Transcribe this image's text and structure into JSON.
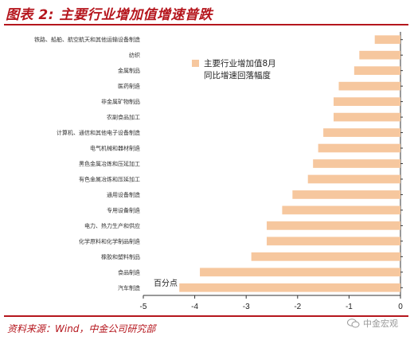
{
  "header": {
    "title": "图表 2: 主要行业增加值增速普跌"
  },
  "footer": {
    "source": "资料来源：Wind，中金公司研究部",
    "watermark": "中金宏观"
  },
  "chart_data": {
    "type": "bar",
    "orientation": "horizontal",
    "categories": [
      "铁路、船舶、航空航天和其他运输设备制造",
      "纺织",
      "金属制品",
      "医药制造",
      "非金属矿物制品",
      "农副食品加工",
      "计算机、通信和其他电子设备制造",
      "电气机械和器材制造",
      "黑色金属冶炼和压延加工",
      "有色金属冶炼和压延加工",
      "通用设备制造",
      "专用设备制造",
      "电力、热力生产和供应",
      "化学原料和化学制品制造",
      "橡胶和塑料制品",
      "食品制造",
      "汽车制造"
    ],
    "series": [
      {
        "name": "主要行业增加值8月同比增速回落幅度",
        "values": [
          -0.5,
          -0.8,
          -0.9,
          -1.2,
          -1.3,
          -1.3,
          -1.5,
          -1.6,
          -1.7,
          -1.8,
          -2.1,
          -2.3,
          -2.6,
          -2.6,
          -2.9,
          -3.9,
          -4.3
        ]
      }
    ],
    "xlim": [
      -5,
      0
    ],
    "xticks": [
      "-5",
      "-4",
      "-3",
      "-2",
      "-1",
      "0"
    ],
    "annotation": "百分点",
    "legend": {
      "lines": [
        "主要行业增加值8月",
        "同比增速回落幅度"
      ],
      "placement": "upper-right"
    },
    "colors": {
      "bar": "#f6c79e",
      "title": "#b5161d"
    }
  }
}
